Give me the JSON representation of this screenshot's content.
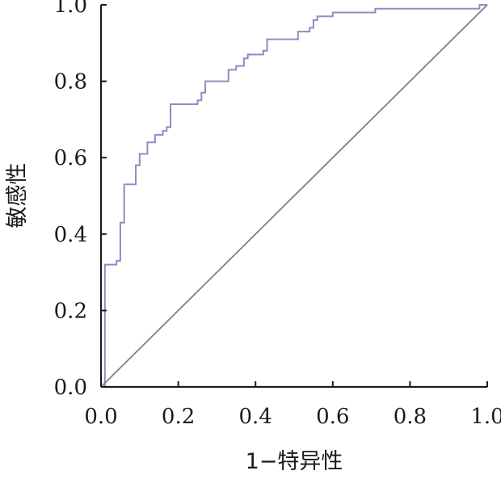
{
  "chart_data": {
    "type": "line",
    "title": "",
    "xlabel": "1−特异性",
    "ylabel": "敏感性",
    "xlim": [
      0,
      1
    ],
    "ylim": [
      0,
      1
    ],
    "xticks": [
      "0.0",
      "0.2",
      "0.4",
      "0.6",
      "0.8",
      "1.0"
    ],
    "yticks": [
      "0.0",
      "0.2",
      "0.4",
      "0.6",
      "0.8",
      "1.0"
    ],
    "grid": false,
    "legend": "none",
    "series": [
      {
        "role": "roc-curve",
        "color": "#9b86c4",
        "step": true,
        "x": [
          0.0,
          0.01,
          0.03,
          0.04,
          0.05,
          0.06,
          0.08,
          0.09,
          0.1,
          0.12,
          0.14,
          0.16,
          0.17,
          0.18,
          0.21,
          0.25,
          0.26,
          0.27,
          0.33,
          0.35,
          0.37,
          0.38,
          0.4,
          0.42,
          0.43,
          0.45,
          0.51,
          0.54,
          0.55,
          0.56,
          0.57,
          0.58,
          0.6,
          0.64,
          0.71,
          0.97,
          0.98,
          1.0
        ],
        "y": [
          0.0,
          0.32,
          0.32,
          0.33,
          0.43,
          0.53,
          0.53,
          0.58,
          0.61,
          0.64,
          0.66,
          0.67,
          0.68,
          0.74,
          0.74,
          0.75,
          0.77,
          0.8,
          0.83,
          0.84,
          0.86,
          0.87,
          0.87,
          0.88,
          0.91,
          0.91,
          0.93,
          0.94,
          0.96,
          0.97,
          0.97,
          0.97,
          0.98,
          0.98,
          0.99,
          0.99,
          1.0,
          1.0
        ]
      },
      {
        "role": "reference-line",
        "color": "#808080",
        "step": false,
        "x": [
          0,
          1
        ],
        "y": [
          0,
          1
        ]
      }
    ]
  }
}
